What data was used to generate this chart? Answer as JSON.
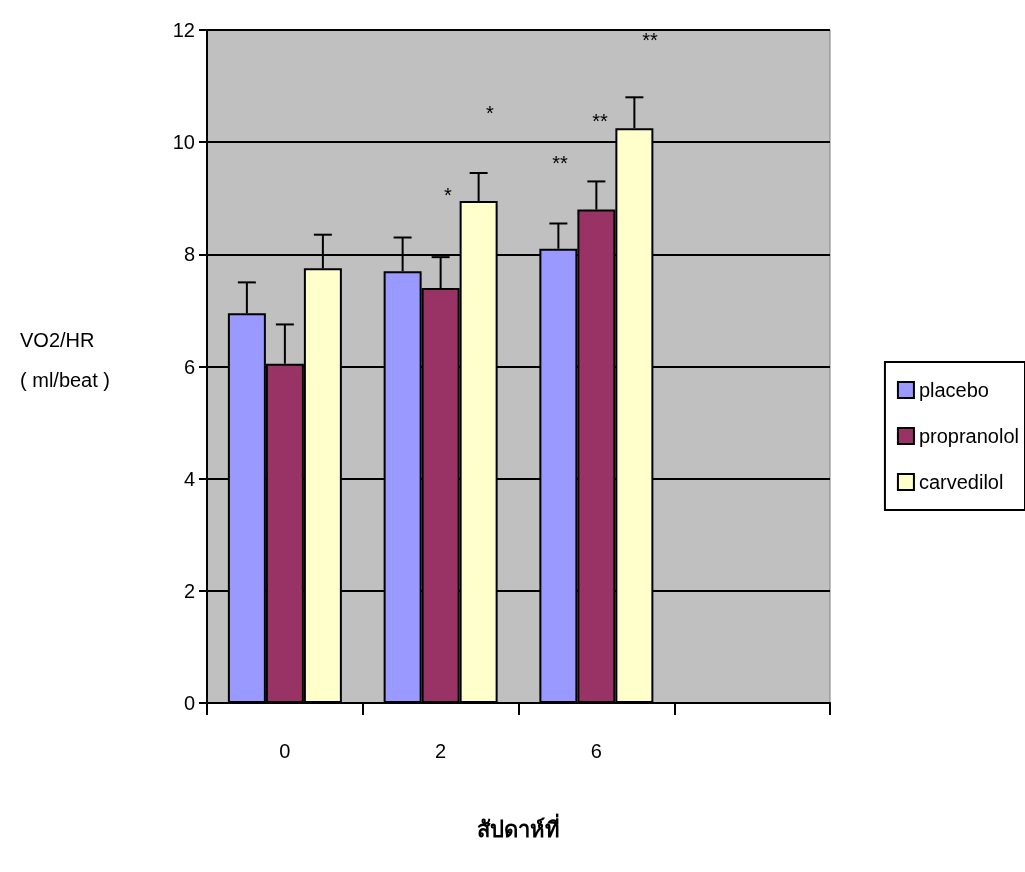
{
  "chart_data": {
    "type": "bar",
    "xlabel": "สัปดาห์ที่",
    "ylabel": "VO2/HR\n( ml/beat )",
    "categories": [
      "0",
      "2",
      "6",
      null
    ],
    "series": [
      {
        "name": "placebo",
        "color": "#9999ff",
        "values": [
          6.95,
          7.7,
          8.1,
          null
        ],
        "errors": [
          [
            6.95,
            7.5
          ],
          [
            7.7,
            8.3
          ],
          [
            8.1,
            8.55
          ],
          null
        ]
      },
      {
        "name": "propranolol",
        "color": "#993366",
        "values": [
          6.05,
          7.4,
          8.8,
          null
        ],
        "errors": [
          [
            6.05,
            6.75
          ],
          [
            7.4,
            7.95
          ],
          [
            8.8,
            9.3
          ],
          null
        ]
      },
      {
        "name": "carvedilol",
        "color": "#ffffcc",
        "values": [
          7.75,
          8.95,
          10.25,
          null
        ],
        "errors": [
          [
            7.75,
            8.35
          ],
          [
            8.95,
            9.45
          ],
          [
            10.25,
            10.8
          ],
          null
        ]
      }
    ],
    "ylim": [
      0,
      12
    ],
    "yticks": [
      0,
      2,
      4,
      6,
      8,
      10,
      12
    ],
    "grid": "y",
    "legend": "right",
    "annotations": [
      "*",
      "*",
      "**",
      "**",
      "**"
    ]
  }
}
